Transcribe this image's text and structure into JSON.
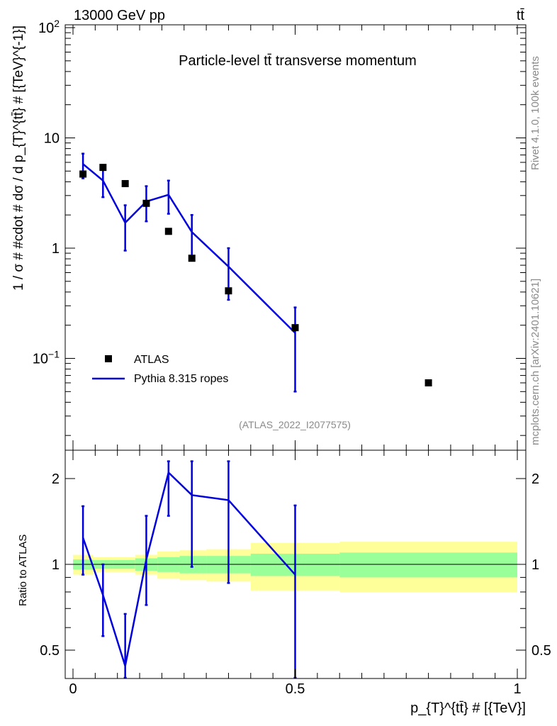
{
  "header": {
    "energy_label": "13000 GeV pp",
    "process_label": "tt̄"
  },
  "side_labels": {
    "rivet": "Rivet 4.1.0,  100k events",
    "source": "mcplots.cern.ch [arXiv:2401.10621]"
  },
  "chart_data": [
    {
      "type": "scatter",
      "title": "Particle-level tt̄ transverse momentum",
      "annotation": "(ATLAS_2022_I2077575)",
      "ylabel": "1 / σ # #cdot # dσ / d p_{T}^{tt̄} # [{TeV}^{-1}]",
      "yscale": "log",
      "ylim": [
        0.02,
        100
      ],
      "xlim": [
        0,
        1.02
      ],
      "ytick_labels": [
        "10^-1",
        "1",
        "10",
        "10^2"
      ],
      "legend_position": "bottom-left",
      "series": [
        {
          "name": "ATLAS",
          "marker": "square",
          "color": "#000000",
          "x": [
            0.0225,
            0.0675,
            0.1175,
            0.165,
            0.215,
            0.2675,
            0.35,
            0.5,
            0.8
          ],
          "y": [
            4.7,
            5.4,
            3.85,
            2.55,
            1.42,
            0.81,
            0.41,
            0.19,
            0.06
          ]
        },
        {
          "name": "Pythia 8.315 ropes",
          "marker": "line",
          "color": "#0000dd",
          "x": [
            0.0225,
            0.0675,
            0.1175,
            0.165,
            0.215,
            0.2675,
            0.35,
            0.5
          ],
          "y": [
            5.8,
            4.1,
            1.7,
            2.65,
            3.05,
            1.4,
            0.68,
            0.17
          ],
          "err_low": [
            4.3,
            2.9,
            0.95,
            1.75,
            2.05,
            0.85,
            0.34,
            0.05
          ],
          "err_high": [
            7.2,
            5.4,
            2.45,
            3.65,
            4.1,
            2.0,
            1.0,
            0.29
          ]
        }
      ]
    },
    {
      "type": "line",
      "ylabel": "Ratio to ATLAS",
      "xlabel": "p_{T}^{tt̄} # [{TeV}]",
      "yscale": "log",
      "ylim": [
        0.42,
        2.3
      ],
      "xlim": [
        0,
        1.02
      ],
      "yticks": [
        0.5,
        1,
        2
      ],
      "ytick_labels": [
        "0.5",
        "1",
        "2"
      ],
      "xticks": [
        0,
        0.5,
        1
      ],
      "xtick_labels": [
        "0",
        "0.5",
        "1"
      ],
      "reference_line": 1,
      "bands": {
        "green": "#99ff99",
        "yellow": "#ffff99",
        "bins": [
          {
            "x0": 0.0,
            "x1": 0.045,
            "stat_lo": 0.96,
            "stat_hi": 1.04,
            "tot_lo": 0.92,
            "tot_hi": 1.08
          },
          {
            "x0": 0.045,
            "x1": 0.09,
            "stat_lo": 0.965,
            "stat_hi": 1.035,
            "tot_lo": 0.94,
            "tot_hi": 1.06
          },
          {
            "x0": 0.09,
            "x1": 0.14,
            "stat_lo": 0.965,
            "stat_hi": 1.035,
            "tot_lo": 0.94,
            "tot_hi": 1.06
          },
          {
            "x0": 0.14,
            "x1": 0.19,
            "stat_lo": 0.95,
            "stat_hi": 1.05,
            "tot_lo": 0.92,
            "tot_hi": 1.08
          },
          {
            "x0": 0.19,
            "x1": 0.24,
            "stat_lo": 0.94,
            "stat_hi": 1.06,
            "tot_lo": 0.89,
            "tot_hi": 1.11
          },
          {
            "x0": 0.24,
            "x1": 0.3,
            "stat_lo": 0.93,
            "stat_hi": 1.07,
            "tot_lo": 0.88,
            "tot_hi": 1.12
          },
          {
            "x0": 0.3,
            "x1": 0.4,
            "stat_lo": 0.93,
            "stat_hi": 1.07,
            "tot_lo": 0.87,
            "tot_hi": 1.13
          },
          {
            "x0": 0.4,
            "x1": 0.6,
            "stat_lo": 0.91,
            "stat_hi": 1.09,
            "tot_lo": 0.81,
            "tot_hi": 1.19
          },
          {
            "x0": 0.6,
            "x1": 1.0,
            "stat_lo": 0.9,
            "stat_hi": 1.1,
            "tot_lo": 0.8,
            "tot_hi": 1.2
          }
        ]
      },
      "series": [
        {
          "name": "Pythia 8.315 ropes",
          "color": "#0000dd",
          "x": [
            0.0225,
            0.0675,
            0.1175,
            0.165,
            0.215,
            0.2675,
            0.35,
            0.5
          ],
          "y": [
            1.24,
            0.78,
            0.44,
            1.04,
            2.1,
            1.75,
            1.68,
            0.92
          ],
          "err_low": [
            0.92,
            0.56,
            0.32,
            0.72,
            1.48,
            0.98,
            0.86,
            0.3
          ],
          "err_high": [
            1.6,
            1.0,
            0.67,
            1.48,
            2.3,
            2.3,
            2.3,
            1.61
          ]
        }
      ]
    }
  ]
}
